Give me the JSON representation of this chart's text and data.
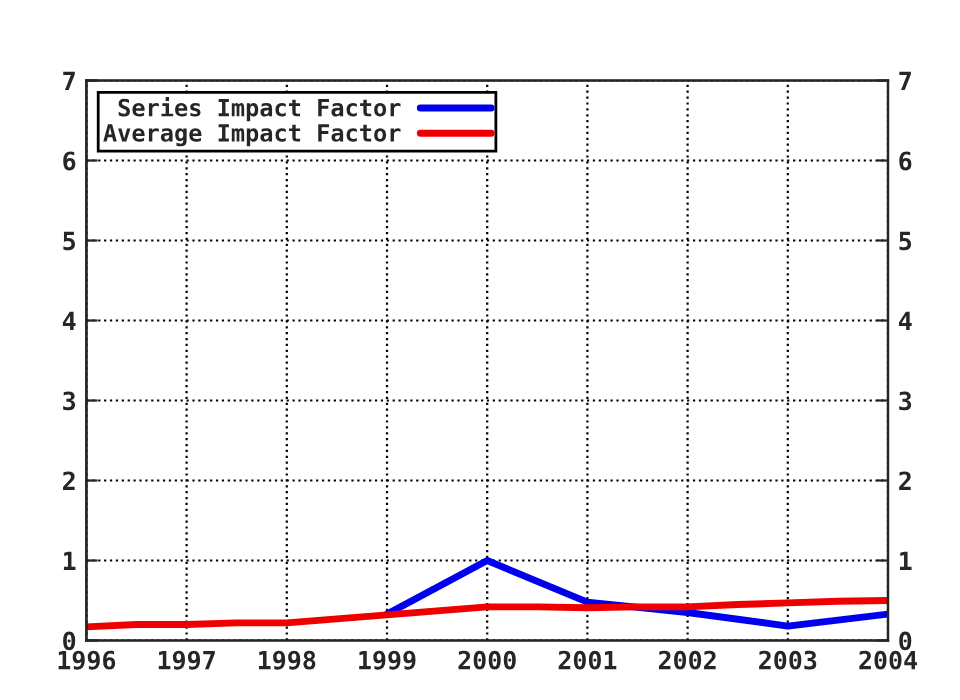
{
  "chart_data": {
    "type": "line",
    "series": [
      {
        "name": "Series Impact Factor",
        "color": "#0000ee",
        "x": [
          1999,
          2000,
          2001,
          2002,
          2003,
          2004
        ],
        "values": [
          0.33,
          1.0,
          0.48,
          0.35,
          0.18,
          0.33
        ]
      },
      {
        "name": "Average Impact Factor",
        "color": "#ee0000",
        "x": [
          1996,
          1996.5,
          1997,
          1997.5,
          1998,
          1998.5,
          1999,
          1999.5,
          2000,
          2000.5,
          2001,
          2001.5,
          2002,
          2002.5,
          2003,
          2003.5,
          2004
        ],
        "values": [
          0.17,
          0.2,
          0.2,
          0.22,
          0.22,
          0.27,
          0.32,
          0.37,
          0.42,
          0.42,
          0.41,
          0.42,
          0.42,
          0.45,
          0.47,
          0.49,
          0.5
        ]
      }
    ],
    "xlim": [
      1996,
      2004
    ],
    "xticks": [
      1996,
      1997,
      1998,
      1999,
      2000,
      2001,
      2002,
      2003,
      2004
    ],
    "ylim": [
      0,
      7
    ],
    "yticks": [
      0,
      1,
      2,
      3,
      4,
      5,
      6,
      7
    ],
    "y2lim": [
      0,
      7
    ],
    "y2ticks": [
      0,
      1,
      2,
      3,
      4,
      5,
      6,
      7
    ],
    "grid": true,
    "legend": "top left",
    "line_style": "solid",
    "marker": "none"
  }
}
